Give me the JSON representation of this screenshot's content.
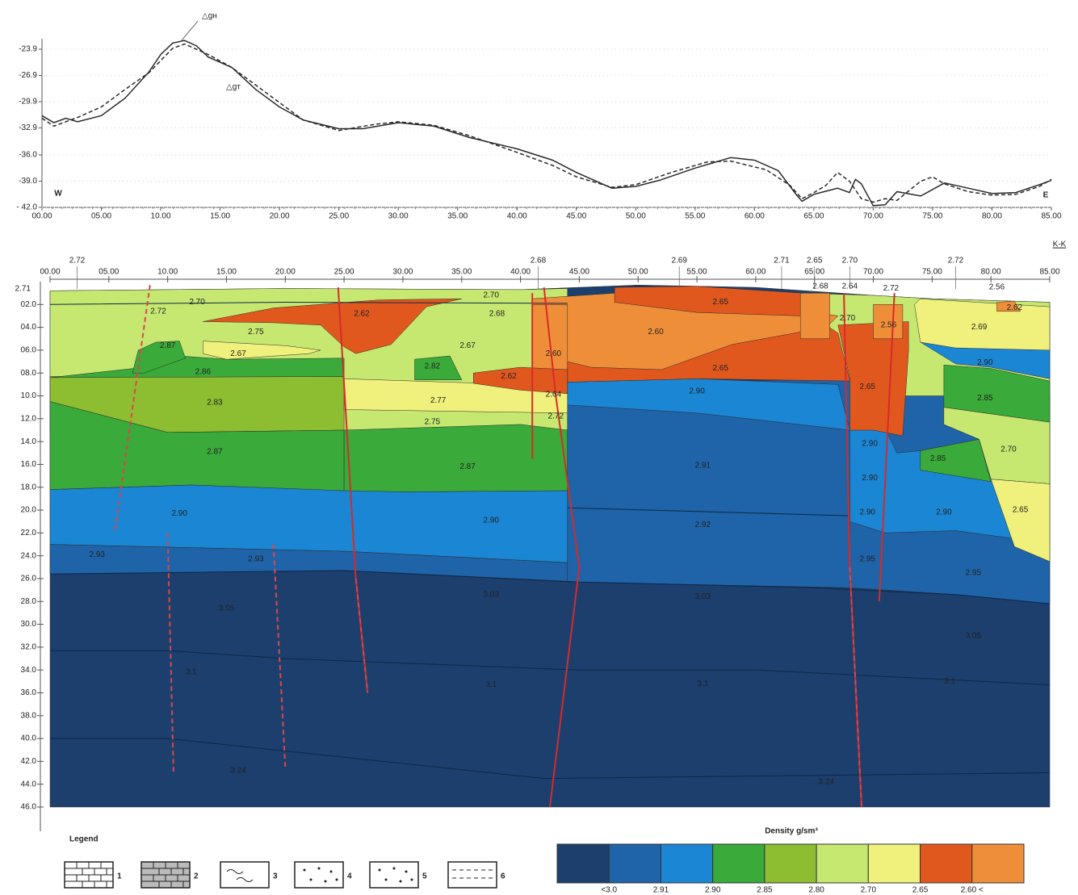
{
  "chart_data": [
    {
      "type": "line",
      "side_labels": [
        "W",
        "E"
      ],
      "xlim": [
        0,
        85
      ],
      "xticks": [
        {
          "value": 0,
          "label": "00.00"
        },
        {
          "value": 5,
          "label": "05.00"
        },
        {
          "value": 10,
          "label": "10.00"
        },
        {
          "value": 15,
          "label": "15.00"
        },
        {
          "value": 20,
          "label": "20.00"
        },
        {
          "value": 25,
          "label": "25.00"
        },
        {
          "value": 30,
          "label": "30.00"
        },
        {
          "value": 35,
          "label": "35.00"
        },
        {
          "value": 40,
          "label": "40.00"
        },
        {
          "value": 45,
          "label": "45.00"
        },
        {
          "value": 50,
          "label": "50.00"
        },
        {
          "value": 55,
          "label": "55.00"
        },
        {
          "value": 60,
          "label": "60.00"
        },
        {
          "value": 65,
          "label": "65.00"
        },
        {
          "value": 70,
          "label": "70.00"
        },
        {
          "value": 75,
          "label": "75.00"
        },
        {
          "value": 80,
          "label": "80.00"
        },
        {
          "value": 85,
          "label": "85.00"
        }
      ],
      "ylim": [
        -42,
        -22.7
      ],
      "yticks": [
        -23.9,
        -26.9,
        -29.9,
        -32.9,
        {
          "value": -36,
          "label": "-36.0"
        },
        {
          "value": -39,
          "label": "-39.0"
        },
        {
          "value": -42,
          "label": "- 42.0"
        }
      ],
      "series": [
        {
          "name": "△gн",
          "color": "#2a2a2a",
          "style": "solid",
          "x": [
            0,
            1,
            2,
            3,
            5,
            7,
            9,
            10,
            11,
            12,
            13,
            14,
            15,
            16,
            18,
            20,
            22,
            25,
            27,
            30,
            33,
            36,
            40,
            43,
            45,
            48,
            50,
            52,
            55,
            58,
            60,
            62,
            63.5,
            64,
            65,
            67,
            68,
            68.5,
            69,
            70,
            71,
            72,
            74,
            76,
            78,
            80,
            82,
            84,
            85
          ],
          "values": [
            -31.5,
            -32.3,
            -31.8,
            -32.2,
            -31.5,
            -29.5,
            -26.5,
            -24.5,
            -23.2,
            -22.9,
            -23.5,
            -24.8,
            -25.4,
            -26,
            -28.5,
            -30.5,
            -32,
            -33,
            -33,
            -32.3,
            -32.7,
            -34,
            -35.3,
            -36.6,
            -38,
            -39.8,
            -39.6,
            -38.9,
            -37.5,
            -36.3,
            -36.6,
            -37.8,
            -40.5,
            -41.3,
            -40.5,
            -39.8,
            -40.3,
            -38.8,
            -39.3,
            -41.8,
            -41.7,
            -40.2,
            -40.7,
            -39.2,
            -39.8,
            -40.4,
            -40.3,
            -39.4,
            -38.9
          ]
        },
        {
          "name": "△gт",
          "color": "#2a2a2a",
          "style": "dashed",
          "x": [
            0,
            1,
            3,
            5,
            7,
            9,
            11,
            12,
            14,
            16,
            18,
            20,
            22,
            25,
            28,
            30,
            33,
            36,
            40,
            43,
            45,
            48,
            50,
            53,
            56,
            58,
            61,
            63,
            64,
            65,
            66,
            67,
            68,
            69,
            70,
            71,
            72,
            74,
            75,
            76,
            78,
            80,
            82,
            84,
            85
          ],
          "values": [
            -31.8,
            -32.7,
            -31.7,
            -30.5,
            -28.5,
            -26.6,
            -23.8,
            -23.3,
            -24.5,
            -26,
            -28,
            -30,
            -32,
            -33.2,
            -32.5,
            -32.2,
            -32.6,
            -33.8,
            -35.7,
            -37.2,
            -38.5,
            -39.7,
            -39.4,
            -38,
            -36.8,
            -36.7,
            -37.7,
            -39.5,
            -41,
            -40.3,
            -39.5,
            -38,
            -39,
            -41,
            -41.4,
            -41,
            -41.2,
            -39,
            -38.5,
            -39.3,
            -40.2,
            -40.6,
            -40.5,
            -39.6,
            -38.8
          ]
        }
      ]
    },
    {
      "type": "section",
      "corner_label": "K-K",
      "surface_label": "2.71",
      "xlim": [
        0,
        85
      ],
      "xticks": [
        {
          "value": 0,
          "label": "00.00"
        },
        {
          "value": 5,
          "label": "05.00"
        },
        {
          "value": 10,
          "label": "10.00"
        },
        {
          "value": 15,
          "label": "15.00"
        },
        {
          "value": 20,
          "label": "20.00"
        },
        {
          "value": 25,
          "label": "25.00"
        },
        {
          "value": 30,
          "label": "30.00"
        },
        {
          "value": 35,
          "label": "35.00"
        },
        {
          "value": 40,
          "label": "40.00"
        },
        {
          "value": 45,
          "label": "45.00"
        },
        {
          "value": 50,
          "label": "50.00"
        },
        {
          "value": 55,
          "label": "55.00"
        },
        {
          "value": 60,
          "label": "60.00"
        },
        {
          "value": 65,
          "label": "65.00"
        },
        {
          "value": 70,
          "label": "70.00"
        },
        {
          "value": 75,
          "label": "75.00"
        },
        {
          "value": 80,
          "label": "80.00"
        },
        {
          "value": 85,
          "label": "85.00"
        }
      ],
      "ylim": [
        0,
        46
      ],
      "yticks": [
        {
          "value": 2,
          "label": "02.0"
        },
        {
          "value": 4,
          "label": "04.0"
        },
        {
          "value": 6,
          "label": "06.0"
        },
        {
          "value": 8,
          "label": "08.0"
        },
        {
          "value": 10,
          "label": "10.0"
        },
        {
          "value": 12,
          "label": "12.0"
        },
        {
          "value": 14,
          "label": "14.0"
        },
        {
          "value": 16,
          "label": "16.0"
        },
        {
          "value": 18,
          "label": "18.0"
        },
        {
          "value": 20,
          "label": "20.0"
        },
        {
          "value": 22,
          "label": "22.0"
        },
        {
          "value": 24,
          "label": "24.0"
        },
        {
          "value": 26,
          "label": "26.0"
        },
        {
          "value": 28,
          "label": "28.0"
        },
        {
          "value": 30,
          "label": "30.0"
        },
        {
          "value": 32,
          "label": "32.0"
        },
        {
          "value": 34,
          "label": "34.0"
        },
        {
          "value": 36,
          "label": "36.0"
        },
        {
          "value": 38,
          "label": "38.0"
        },
        {
          "value": 40,
          "label": "40.0"
        },
        {
          "value": 42,
          "label": "42.0"
        },
        {
          "value": 44,
          "label": "44.0"
        },
        {
          "value": 46,
          "label": "46.0"
        }
      ],
      "top_labels": [
        "2.72",
        "2.68",
        "2.69",
        "2.71",
        "2.65",
        "2.70",
        "2.72"
      ],
      "density_labels": [
        "2.70",
        "2.72",
        "2.75",
        "2.87",
        "2.67",
        "2.86",
        "2.83",
        "2.87",
        "2.90",
        "2.93",
        "2.93",
        "3.05",
        "3.1",
        "3.24",
        "2.62",
        "2.70",
        "2.68",
        "2.67",
        "2.82",
        "2.62",
        "2.77",
        "2.75",
        "2.87",
        "2.90",
        "3.03",
        "3.1",
        "2.60",
        "2.64",
        "2.72",
        "2.60",
        "2.65",
        "2.65",
        "2.90",
        "2.91",
        "2.92",
        "3.03",
        "3.1",
        "2.68",
        "2.64",
        "2.72",
        "2.56",
        "2.70",
        "2.56",
        "2.69",
        "2.62",
        "2.65",
        "2.90",
        "2.90",
        "2.90",
        "2.90",
        "2.95",
        "2.95",
        "3.05",
        "3.1",
        "3.24",
        "2.90",
        "2.85",
        "2.85",
        "2.70",
        "2.65"
      ]
    }
  ],
  "legend": {
    "title": "Legend",
    "items": [
      "1",
      "2",
      "3",
      "4",
      "5",
      "6"
    ]
  },
  "density_scale": {
    "title": "Density g/sm³",
    "colors": [
      "#1c3f6d",
      "#1f63a8",
      "#1b86d3",
      "#3aaa3a",
      "#8dbd30",
      "#c6e870",
      "#f0f07c",
      "#e1581f",
      "#ef8e38"
    ],
    "labels": [
      "<3.0",
      "2.91",
      "2.90",
      "2.85",
      "2.80",
      "2.70",
      "2.65",
      "2.60 <"
    ]
  }
}
